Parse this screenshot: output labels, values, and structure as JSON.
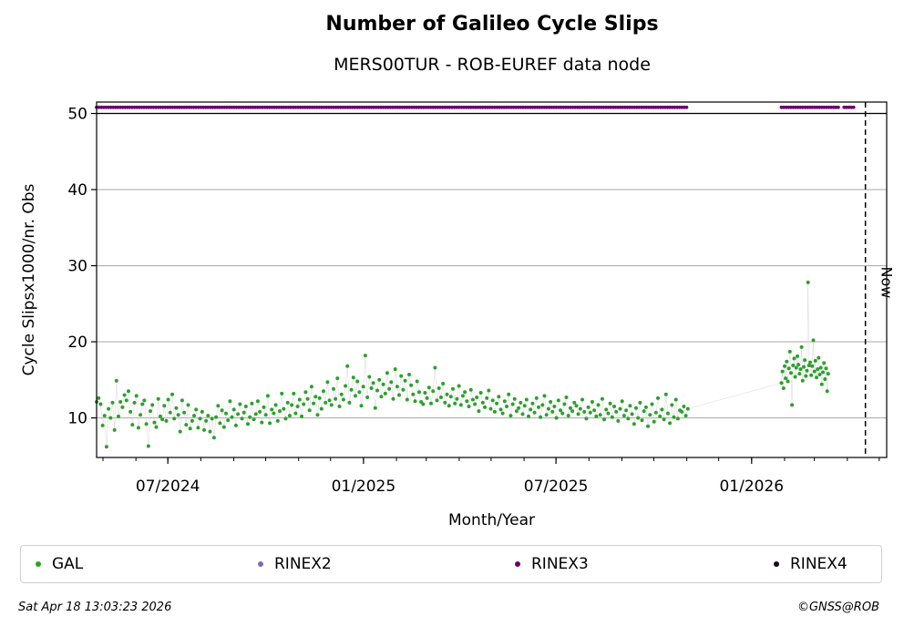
{
  "title": "Number of Galileo Cycle Slips",
  "subtitle": "MERS00TUR - ROB-EUREF data node",
  "footer": {
    "timestamp": "Sat Apr 18 13:03:23 2026",
    "credit": "©GNSS@ROB"
  },
  "colors": {
    "gal": "#2ca02c",
    "rinex2": "#7570b3",
    "rinex3": "#68006b",
    "rinex4": "#1a0020"
  },
  "chart_data": {
    "type": "scatter",
    "xlabel": "Month/Year",
    "ylabel": "Cycle Slipsx1000/nr. Obs",
    "x_ticks": [
      "07/2024",
      "01/2025",
      "07/2025",
      "01/2026"
    ],
    "y_ticks": [
      10,
      20,
      30,
      40,
      50
    ],
    "xlim": [
      "2024-04-25",
      "2026-05-08"
    ],
    "ylim": [
      4.8,
      51.5
    ],
    "grid": "y",
    "now_label": "Now",
    "now_date": "2026-04-18",
    "legend_placement": "bottom",
    "legend": [
      "GAL",
      "RINEX2",
      "RINEX3",
      "RINEX4"
    ],
    "series": [
      {
        "name": "GAL",
        "start_date": "2024-04-25",
        "end_date": "2025-11-02",
        "values": [
          12.1,
          12.6,
          11.8,
          9.0,
          10.3,
          6.2,
          11.2,
          10.0,
          12.0,
          8.4,
          14.9,
          10.2,
          12.1,
          11.4,
          13.0,
          12.3,
          13.5,
          10.8,
          9.1,
          12.0,
          12.9,
          8.7,
          10.4,
          11.8,
          12.3,
          9.2,
          6.3,
          10.9,
          11.7,
          9.4,
          8.8,
          12.5,
          10.2,
          9.8,
          11.6,
          9.6,
          12.4,
          10.7,
          13.1,
          9.9,
          11.3,
          10.4,
          8.2,
          12.3,
          10.7,
          9.1,
          11.7,
          8.6,
          9.6,
          10.3,
          11.1,
          8.7,
          9.9,
          10.8,
          8.4,
          9.6,
          10.3,
          8.2,
          9.9,
          7.4,
          10.1,
          11.6,
          9.3,
          11.0,
          8.8,
          10.6,
          9.7,
          12.2,
          10.1,
          11.1,
          9.0,
          10.5,
          11.8,
          9.9,
          10.7,
          11.5,
          9.2,
          10.1,
          11.9,
          9.8,
          10.5,
          12.2,
          10.8,
          9.4,
          11.4,
          10.4,
          12.9,
          9.3,
          11.1,
          10.6,
          11.7,
          9.6,
          10.9,
          13.2,
          11.2,
          9.9,
          12.0,
          10.3,
          11.7,
          13.2,
          10.6,
          11.5,
          12.4,
          10.2,
          11.8,
          13.4,
          12.5,
          11.0,
          14.1,
          11.9,
          12.8,
          10.4,
          12.6,
          11.2,
          13.5,
          12.0,
          14.7,
          12.3,
          11.7,
          13.8,
          12.5,
          15.2,
          11.5,
          13.1,
          12.4,
          14.2,
          16.8,
          12.0,
          13.7,
          15.3,
          12.9,
          14.8,
          13.4,
          11.6,
          14.1,
          18.2,
          12.7,
          15.4,
          13.9,
          14.6,
          11.3,
          13.6,
          15.0,
          12.8,
          14.4,
          13.2,
          15.9,
          13.8,
          14.7,
          12.5,
          16.4,
          14.1,
          13.0,
          15.5,
          13.7,
          14.9,
          12.4,
          15.7,
          14.3,
          13.1,
          12.2,
          14.8,
          13.4,
          12.1,
          11.8,
          13.3,
          12.6,
          14.0,
          11.9,
          13.5,
          16.6,
          12.3,
          13.9,
          12.7,
          14.5,
          12.0,
          13.1,
          11.6,
          12.8,
          13.8,
          11.9,
          12.5,
          14.2,
          11.7,
          12.9,
          13.4,
          12.2,
          11.5,
          13.7,
          12.4,
          11.8,
          12.7,
          10.9,
          13.3,
          12.0,
          11.4,
          12.6,
          13.6,
          11.2,
          12.3,
          10.8,
          11.9,
          12.8,
          11.1,
          10.6,
          12.2,
          11.5,
          13.1,
          10.3,
          11.8,
          12.5,
          10.9,
          11.3,
          12.0,
          10.5,
          11.6,
          12.4,
          10.2,
          11.1,
          11.9,
          10.7,
          12.6,
          11.4,
          10.1,
          11.7,
          12.9,
          10.4,
          11.2,
          12.1,
          10.8,
          11.5,
          10.0,
          12.3,
          11.0,
          10.6,
          11.8,
          12.7,
          10.3,
          11.3,
          10.9,
          12.0,
          11.6,
          10.5,
          11.2,
          12.4,
          10.8,
          9.9,
          11.4,
          10.7,
          12.1,
          11.0,
          10.2,
          11.7,
          10.4,
          12.5,
          9.8,
          11.1,
          10.6,
          11.9,
          10.1,
          11.5,
          10.8,
          9.6,
          11.2,
          12.2,
          10.3,
          11.0,
          9.9,
          11.6,
          10.5,
          9.2,
          11.3,
          10.0,
          12.0,
          9.7,
          10.9,
          11.4,
          8.9,
          10.4,
          11.8,
          9.5,
          10.7,
          12.6,
          10.2,
          11.1,
          9.8,
          13.1,
          10.6,
          9.3,
          11.7,
          10.1,
          12.4,
          9.9,
          11.0,
          10.8,
          11.5,
          10.3,
          11.2
        ]
      },
      {
        "name": "GAL",
        "start_date": "2026-01-29",
        "end_date": "2026-03-14",
        "values": [
          14.6,
          16.1,
          13.9,
          16.8,
          15.2,
          17.4,
          14.8,
          16.5,
          18.7,
          15.9,
          11.7,
          16.9,
          17.8,
          15.4,
          16.6,
          18.1,
          17.0,
          15.8,
          16.4,
          19.3,
          14.9,
          16.7,
          17.6,
          15.5,
          16.2,
          27.8,
          16.9,
          17.3,
          15.6,
          16.8,
          20.2,
          16.1,
          17.5,
          15.3,
          16.4,
          17.9,
          15.7,
          16.6,
          14.4,
          16.0,
          17.2,
          15.1,
          16.5,
          13.5,
          15.8
        ]
      },
      {
        "name": "RINEX3",
        "segments": [
          [
            "2024-04-25",
            "2025-11-02"
          ],
          [
            "2026-01-29",
            "2026-03-24"
          ],
          [
            "2026-03-29",
            "2026-04-09"
          ]
        ],
        "values": [
          50.8
        ]
      }
    ]
  }
}
